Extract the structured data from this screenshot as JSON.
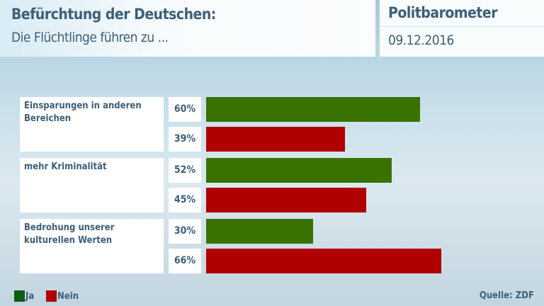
{
  "header": {
    "title": "Befürchtung der Deutschen:",
    "subtitle": "Die Flüchtlinge führen zu ...",
    "brand": "Politbarometer",
    "date": "09.12.2016"
  },
  "chart_data": {
    "type": "bar",
    "orientation": "horizontal",
    "title": "Befürchtung der Deutschen:",
    "subtitle": "Die Flüchtlinge führen zu ...",
    "categories": [
      "Einsparungen in anderen Bereichen",
      "mehr Kriminalität",
      "Bedrohung unserer kulturellen Werten"
    ],
    "series": [
      {
        "name": "Ja",
        "color": "#3a7200",
        "values": [
          60,
          52,
          30
        ]
      },
      {
        "name": "Nein",
        "color": "#b00000",
        "values": [
          39,
          45,
          66
        ]
      }
    ],
    "unit": "%",
    "xlim": [
      0,
      100
    ],
    "grid": false,
    "legend": "bottom-left"
  },
  "labels": {
    "pct": [
      [
        "60%",
        "39%"
      ],
      [
        "52%",
        "45%"
      ],
      [
        "30%",
        "66%"
      ]
    ]
  },
  "source": "Quelle: ZDF"
}
